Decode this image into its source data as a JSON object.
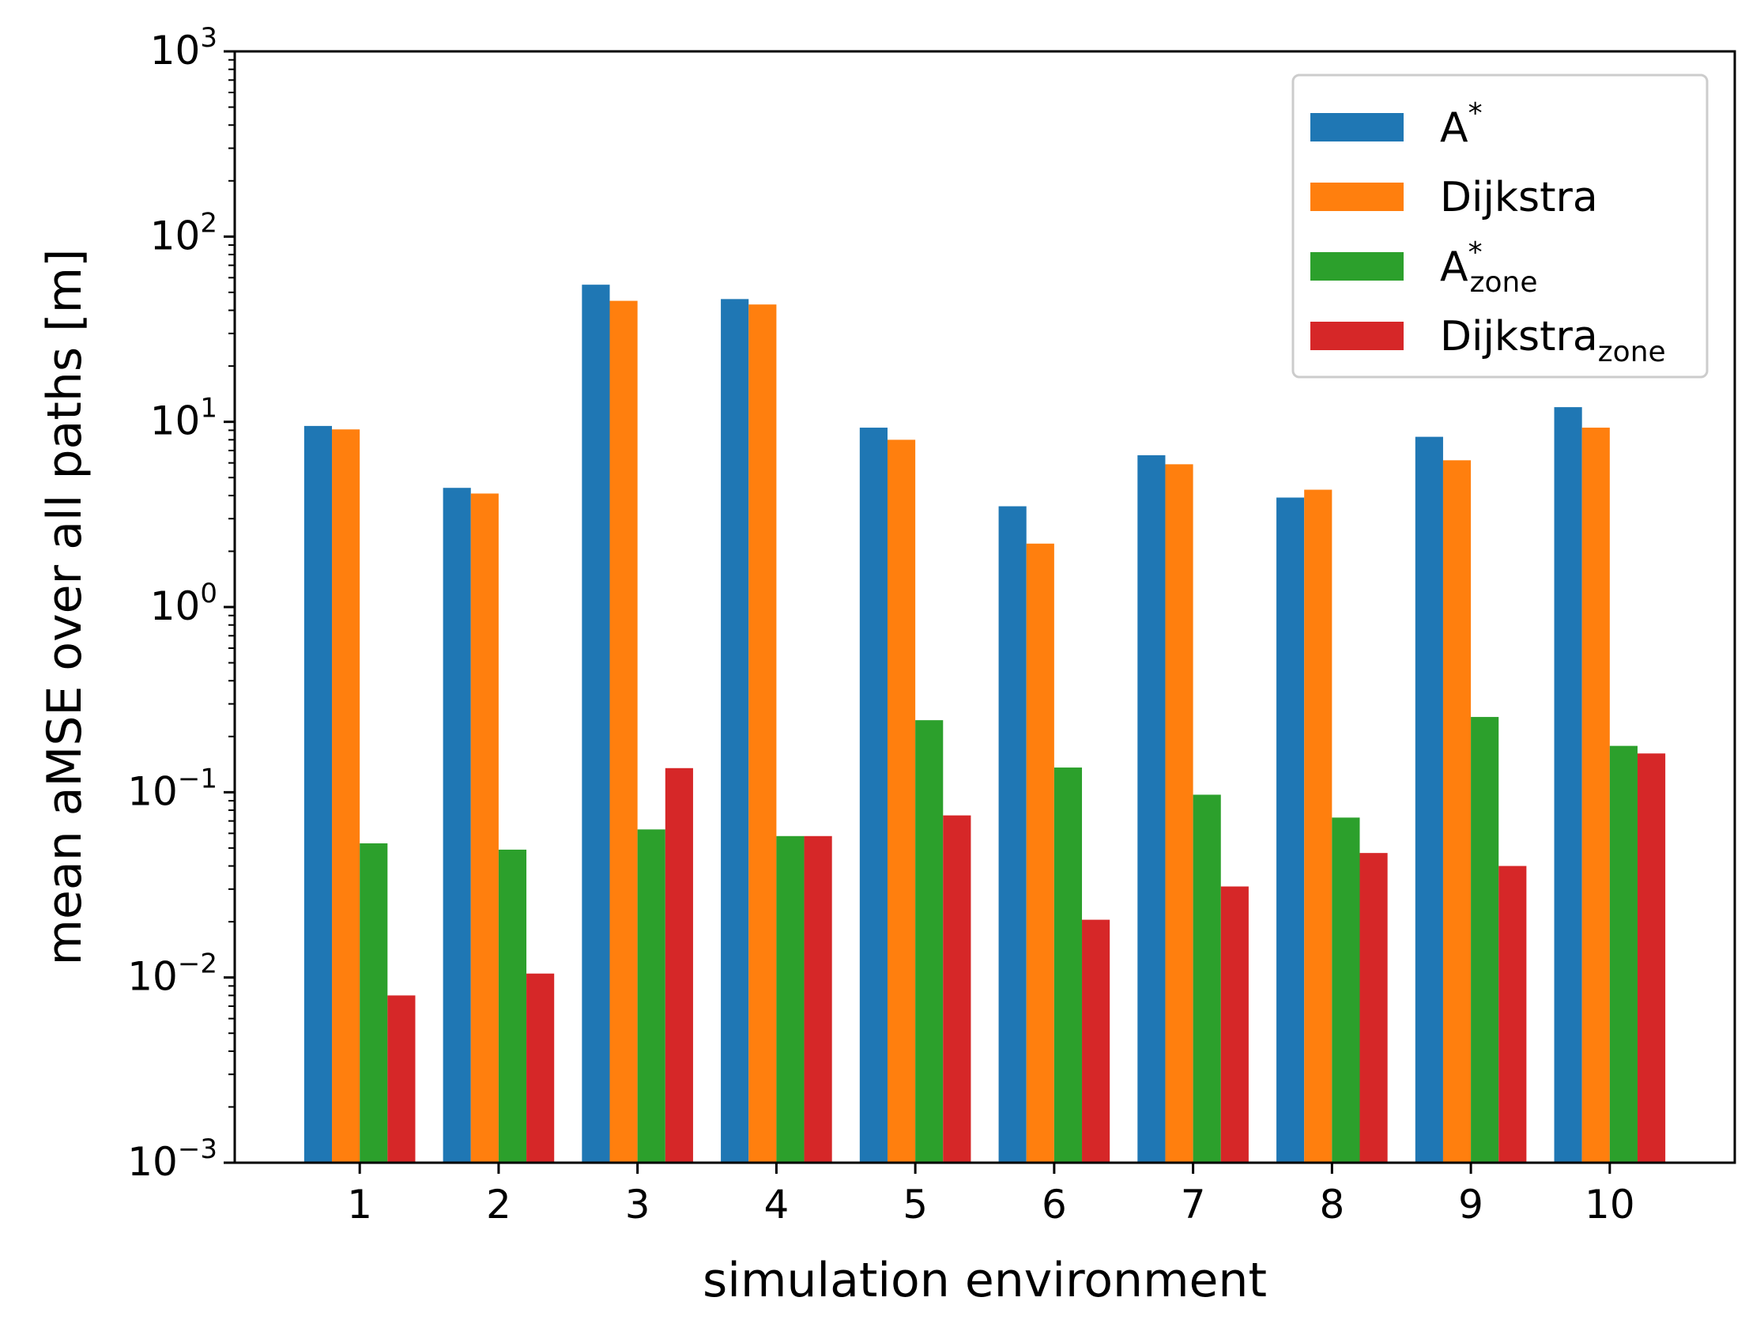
{
  "chart_data": {
    "type": "bar",
    "title": "",
    "xlabel": "simulation environment",
    "ylabel": "mean aMSE over all paths [m]",
    "yscale": "log",
    "ylim": [
      0.001,
      1000
    ],
    "y_ticks": [
      {
        "base": "10",
        "exp": "−3",
        "value": 0.001
      },
      {
        "base": "10",
        "exp": "−2",
        "value": 0.01
      },
      {
        "base": "10",
        "exp": "−1",
        "value": 0.1
      },
      {
        "base": "10",
        "exp": "0",
        "value": 1
      },
      {
        "base": "10",
        "exp": "1",
        "value": 10
      },
      {
        "base": "10",
        "exp": "2",
        "value": 100
      },
      {
        "base": "10",
        "exp": "3",
        "value": 1000
      }
    ],
    "categories": [
      "1",
      "2",
      "3",
      "4",
      "5",
      "6",
      "7",
      "8",
      "9",
      "10"
    ],
    "legend_position": "top-right",
    "series": [
      {
        "name": "A",
        "sup": "*",
        "sub": "",
        "color": "#1f77b4",
        "values": [
          9.5,
          4.4,
          55,
          46,
          9.3,
          3.5,
          6.6,
          3.9,
          8.3,
          12
        ]
      },
      {
        "name": "Dijkstra",
        "sup": "",
        "sub": "",
        "color": "#ff7f0e",
        "values": [
          9.1,
          4.1,
          45,
          43,
          8.0,
          2.2,
          5.9,
          4.3,
          6.2,
          9.3
        ]
      },
      {
        "name": "A",
        "sup": "*",
        "sub": "zone",
        "color": "#2ca02c",
        "values": [
          0.053,
          0.049,
          0.063,
          0.058,
          0.245,
          0.136,
          0.097,
          0.073,
          0.255,
          0.178
        ]
      },
      {
        "name": "Dijkstra",
        "sup": "",
        "sub": "zone",
        "color": "#d62728",
        "values": [
          0.008,
          0.0105,
          0.135,
          0.058,
          0.075,
          0.0205,
          0.031,
          0.047,
          0.04,
          0.162
        ]
      }
    ]
  }
}
